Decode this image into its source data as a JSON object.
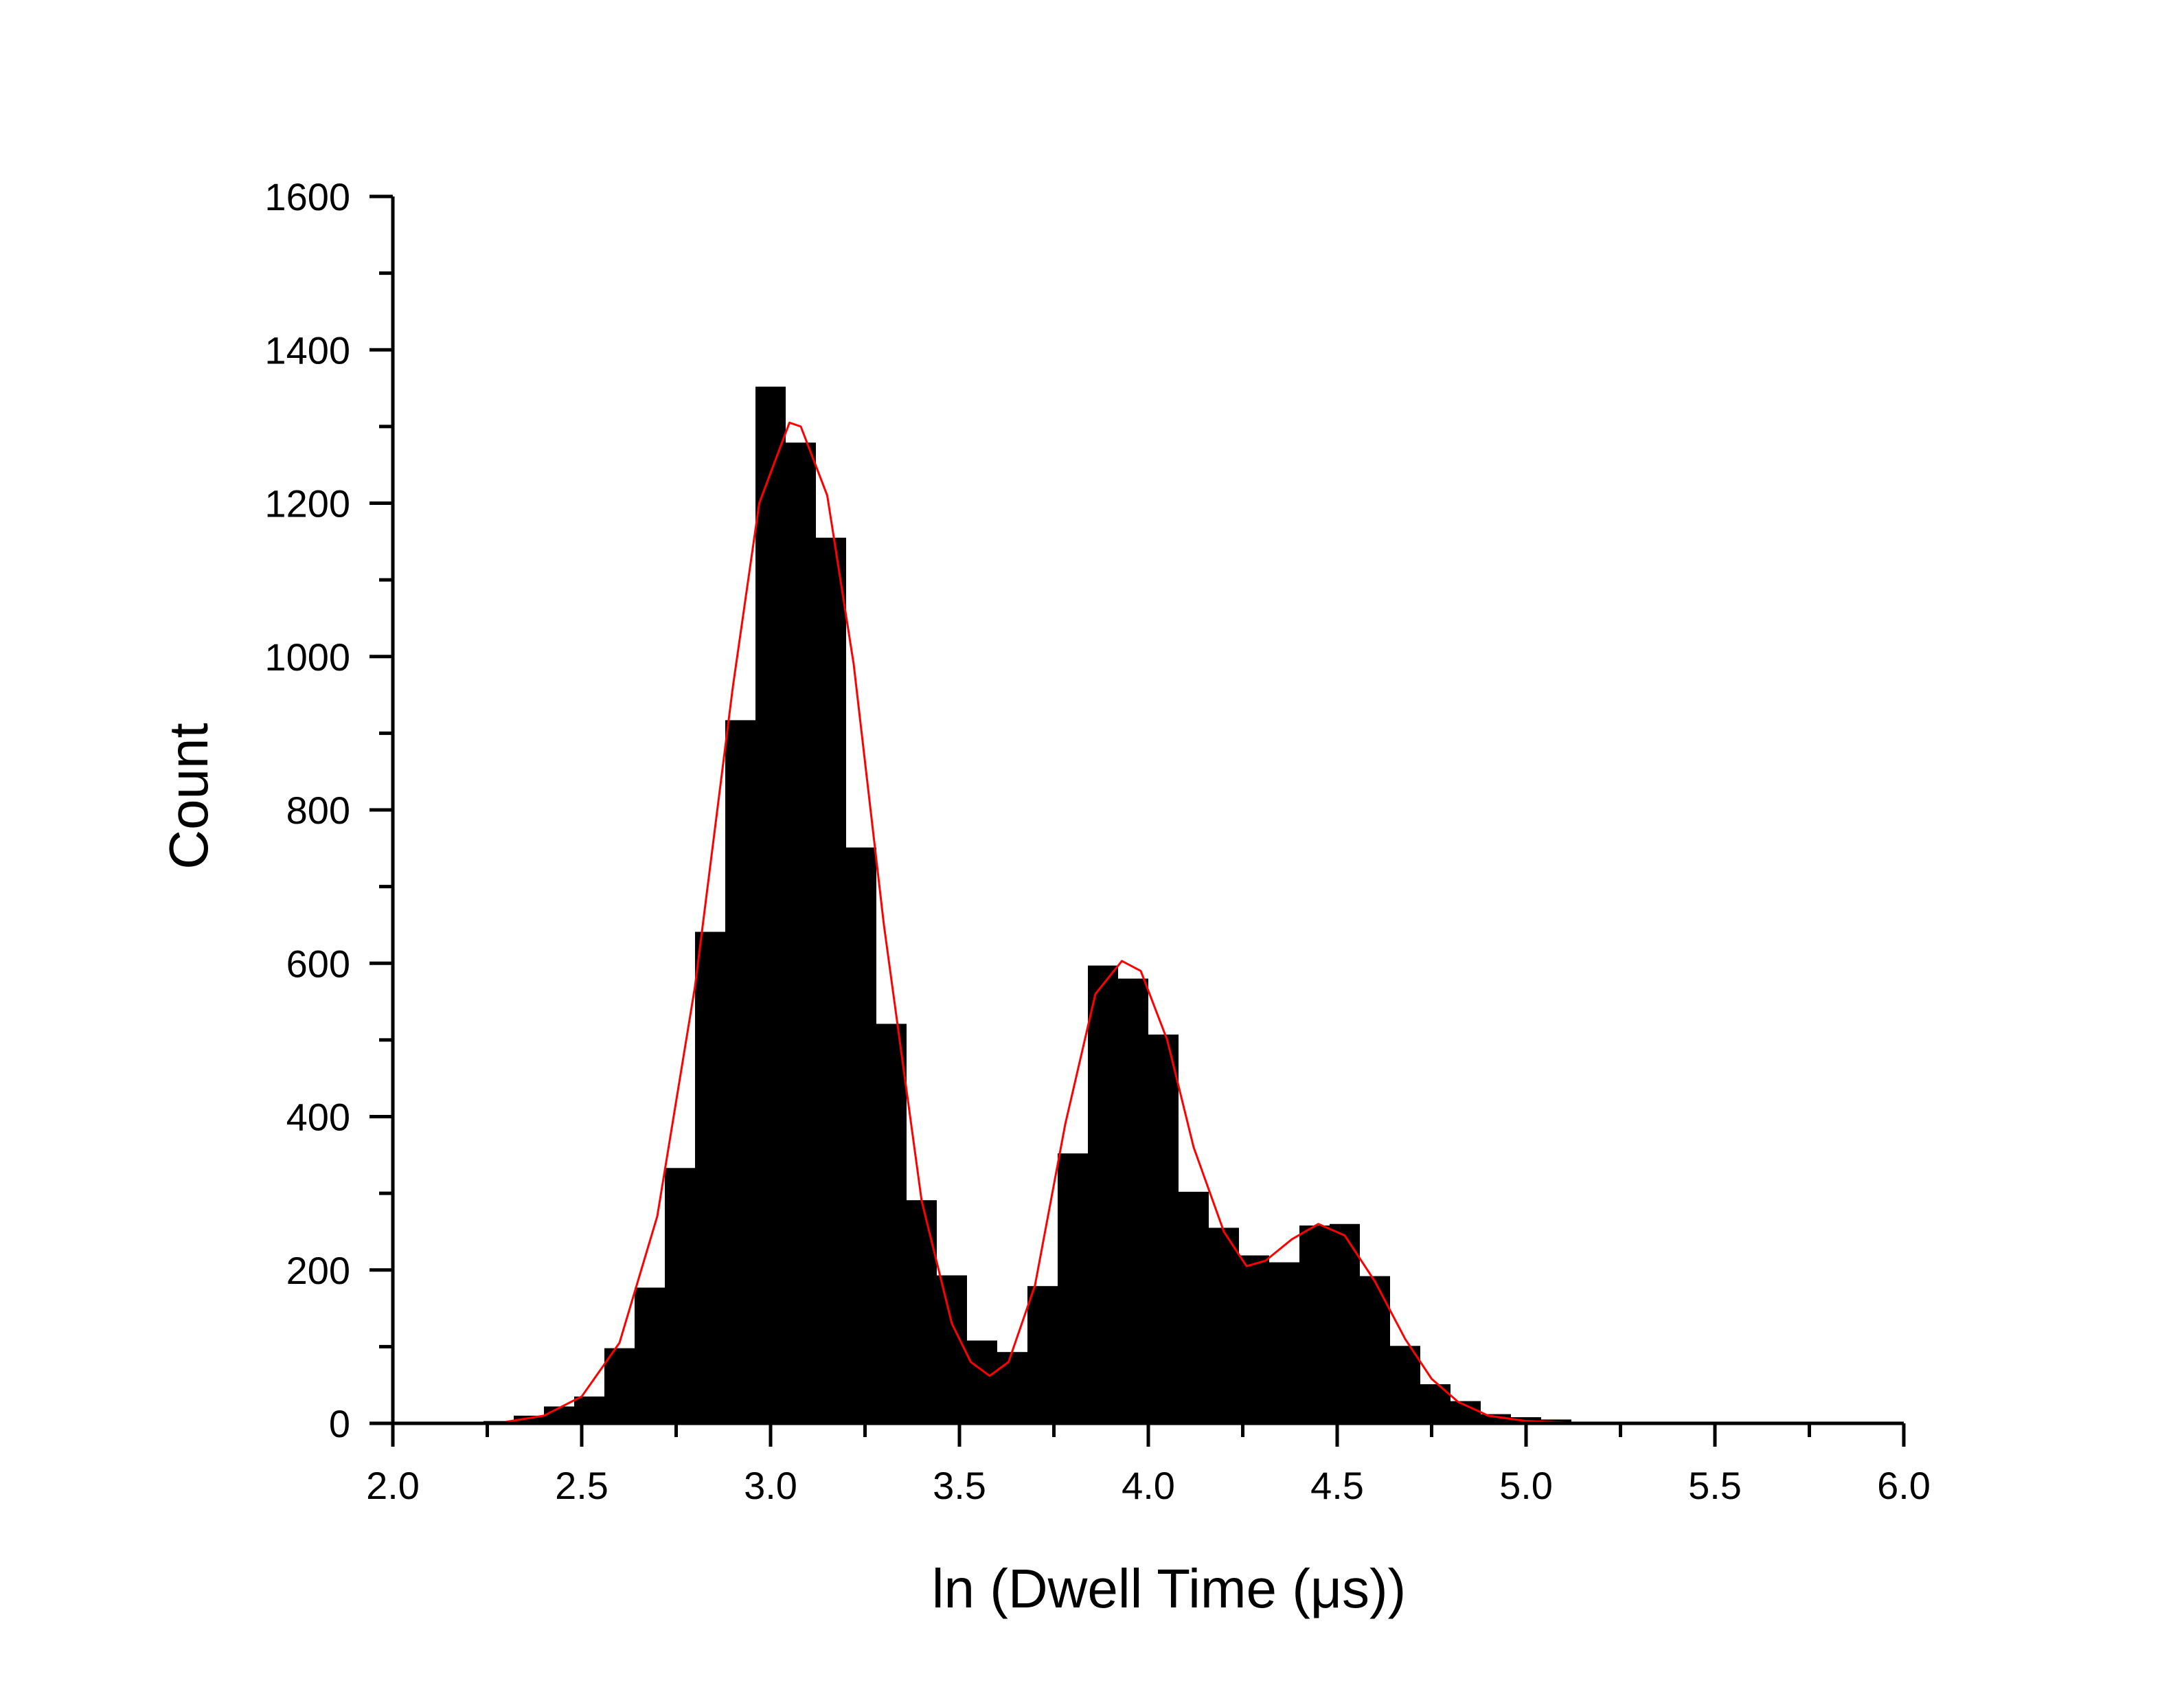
{
  "chart_data": {
    "type": "bar",
    "title": "",
    "xlabel": "ln (Dwell Time (μs))",
    "ylabel": "Count",
    "xlim": [
      2.0,
      6.0
    ],
    "ylim": [
      0,
      1600
    ],
    "x_ticks": [
      "2.0",
      "2.5",
      "3.0",
      "3.5",
      "4.0",
      "4.5",
      "5.0",
      "5.5",
      "6.0"
    ],
    "y_ticks": [
      "0",
      "200",
      "400",
      "600",
      "800",
      "1000",
      "1200",
      "1400",
      "1600"
    ],
    "grid": false,
    "bin_width": 0.08,
    "bins": [
      {
        "x0": 2.24,
        "value": 3
      },
      {
        "x0": 2.32,
        "value": 10
      },
      {
        "x0": 2.4,
        "value": 22
      },
      {
        "x0": 2.48,
        "value": 35
      },
      {
        "x0": 2.56,
        "value": 98
      },
      {
        "x0": 2.64,
        "value": 177
      },
      {
        "x0": 2.72,
        "value": 333
      },
      {
        "x0": 2.8,
        "value": 641
      },
      {
        "x0": 2.88,
        "value": 917
      },
      {
        "x0": 2.96,
        "value": 1352
      },
      {
        "x0": 3.04,
        "value": 1279
      },
      {
        "x0": 3.12,
        "value": 1155
      },
      {
        "x0": 3.2,
        "value": 751
      },
      {
        "x0": 3.28,
        "value": 521
      },
      {
        "x0": 3.36,
        "value": 291
      },
      {
        "x0": 3.44,
        "value": 193
      },
      {
        "x0": 3.52,
        "value": 108
      },
      {
        "x0": 3.6,
        "value": 93
      },
      {
        "x0": 3.68,
        "value": 179
      },
      {
        "x0": 3.76,
        "value": 352
      },
      {
        "x0": 3.84,
        "value": 597
      },
      {
        "x0": 3.92,
        "value": 580
      },
      {
        "x0": 4.0,
        "value": 507
      },
      {
        "x0": 4.08,
        "value": 302
      },
      {
        "x0": 4.16,
        "value": 255
      },
      {
        "x0": 4.24,
        "value": 219
      },
      {
        "x0": 4.32,
        "value": 210
      },
      {
        "x0": 4.4,
        "value": 258
      },
      {
        "x0": 4.48,
        "value": 260
      },
      {
        "x0": 4.56,
        "value": 192
      },
      {
        "x0": 4.64,
        "value": 101
      },
      {
        "x0": 4.72,
        "value": 51
      },
      {
        "x0": 4.8,
        "value": 29
      },
      {
        "x0": 4.88,
        "value": 12
      },
      {
        "x0": 4.96,
        "value": 8
      },
      {
        "x0": 5.04,
        "value": 5
      }
    ],
    "fit_curve": {
      "color": "#ff0000",
      "points": [
        [
          2.3,
          2
        ],
        [
          2.4,
          10
        ],
        [
          2.5,
          35
        ],
        [
          2.6,
          105
        ],
        [
          2.7,
          270
        ],
        [
          2.8,
          570
        ],
        [
          2.9,
          960
        ],
        [
          2.97,
          1200
        ],
        [
          3.05,
          1305
        ],
        [
          3.08,
          1300
        ],
        [
          3.15,
          1210
        ],
        [
          3.22,
          990
        ],
        [
          3.3,
          650
        ],
        [
          3.4,
          290
        ],
        [
          3.48,
          130
        ],
        [
          3.53,
          80
        ],
        [
          3.58,
          62
        ],
        [
          3.63,
          80
        ],
        [
          3.7,
          180
        ],
        [
          3.78,
          390
        ],
        [
          3.86,
          560
        ],
        [
          3.93,
          603
        ],
        [
          3.98,
          590
        ],
        [
          4.05,
          500
        ],
        [
          4.12,
          360
        ],
        [
          4.2,
          250
        ],
        [
          4.26,
          205
        ],
        [
          4.31,
          212
        ],
        [
          4.38,
          240
        ],
        [
          4.45,
          260
        ],
        [
          4.52,
          245
        ],
        [
          4.6,
          185
        ],
        [
          4.68,
          110
        ],
        [
          4.75,
          58
        ],
        [
          4.82,
          28
        ],
        [
          4.9,
          10
        ],
        [
          5.0,
          3
        ],
        [
          5.1,
          1
        ]
      ]
    },
    "colors": {
      "bars": "#000000",
      "fit": "#ff0000",
      "axes": "#000000"
    }
  }
}
